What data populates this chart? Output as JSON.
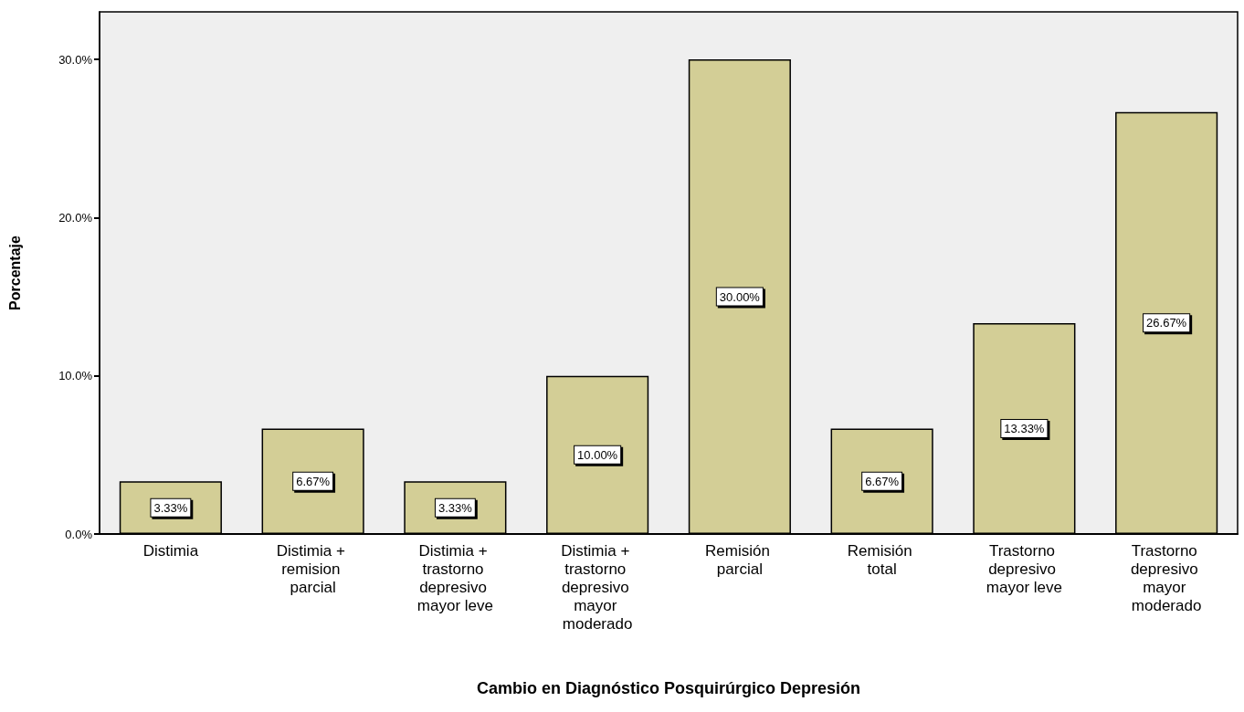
{
  "chart_data": {
    "type": "bar",
    "xlabel": "Cambio en Diagnóstico Posquirúrgico Depresión",
    "ylabel": "Porcentaje",
    "categories": [
      "Distimia",
      "Distimia + remision parcial",
      "Distimia + trastorno depresivo mayor leve",
      "Distimia + trastorno depresivo mayor moderado",
      "Remisión parcial",
      "Remisión total",
      "Trastorno depresivo mayor leve",
      "Trastorno depresivo mayor moderado"
    ],
    "values": [
      3.33,
      6.67,
      3.33,
      10.0,
      30.0,
      6.67,
      13.33,
      26.67
    ],
    "value_labels": [
      "3.33%",
      "6.67%",
      "3.33%",
      "10.00%",
      "30.00%",
      "6.67%",
      "13.33%",
      "26.67%"
    ],
    "color": "#d3ce96",
    "ylim": [
      0,
      33
    ],
    "yticks": [
      {
        "value": 0,
        "label": "0.0%"
      },
      {
        "value": 10,
        "label": "10.0%"
      },
      {
        "value": 20,
        "label": "20.0%"
      },
      {
        "value": 30,
        "label": "30.0%"
      }
    ],
    "grid": false
  }
}
